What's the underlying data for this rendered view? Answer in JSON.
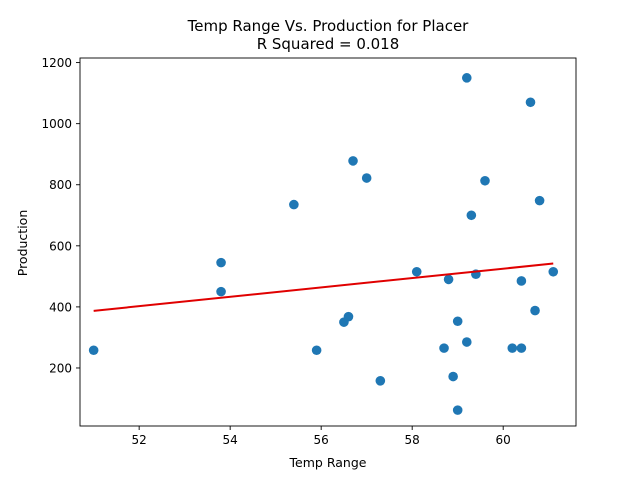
{
  "chart_data": {
    "type": "scatter",
    "title": "Temp Range Vs. Production for Placer",
    "subtitle": "R Squared =  0.018",
    "xlabel": "Temp Range",
    "ylabel": "Production",
    "xlim": [
      50.7,
      61.6
    ],
    "ylim": [
      10,
      1215
    ],
    "x_ticks": [
      52,
      54,
      56,
      58,
      60
    ],
    "y_ticks": [
      200,
      400,
      600,
      800,
      1000,
      1200
    ],
    "grid": false,
    "legend": "none",
    "series": [
      {
        "type": "scatter",
        "color": "#1f77b4",
        "points": [
          {
            "x": 51.0,
            "y": 258
          },
          {
            "x": 53.8,
            "y": 545
          },
          {
            "x": 53.8,
            "y": 450
          },
          {
            "x": 55.4,
            "y": 735
          },
          {
            "x": 55.9,
            "y": 258
          },
          {
            "x": 56.5,
            "y": 350
          },
          {
            "x": 56.6,
            "y": 368
          },
          {
            "x": 56.7,
            "y": 878
          },
          {
            "x": 57.0,
            "y": 822
          },
          {
            "x": 57.3,
            "y": 158
          },
          {
            "x": 58.1,
            "y": 515
          },
          {
            "x": 58.7,
            "y": 265
          },
          {
            "x": 58.8,
            "y": 490
          },
          {
            "x": 58.9,
            "y": 172
          },
          {
            "x": 59.0,
            "y": 62
          },
          {
            "x": 59.0,
            "y": 353
          },
          {
            "x": 59.2,
            "y": 1150
          },
          {
            "x": 59.2,
            "y": 285
          },
          {
            "x": 59.3,
            "y": 700
          },
          {
            "x": 59.4,
            "y": 507
          },
          {
            "x": 59.6,
            "y": 813
          },
          {
            "x": 60.2,
            "y": 265
          },
          {
            "x": 60.4,
            "y": 265
          },
          {
            "x": 60.4,
            "y": 485
          },
          {
            "x": 60.6,
            "y": 1070
          },
          {
            "x": 60.7,
            "y": 388
          },
          {
            "x": 60.8,
            "y": 748
          },
          {
            "x": 61.1,
            "y": 515
          }
        ]
      },
      {
        "type": "line",
        "color": "#e00000",
        "points": [
          {
            "x": 51.0,
            "y": 387
          },
          {
            "x": 61.1,
            "y": 542
          }
        ]
      }
    ]
  }
}
